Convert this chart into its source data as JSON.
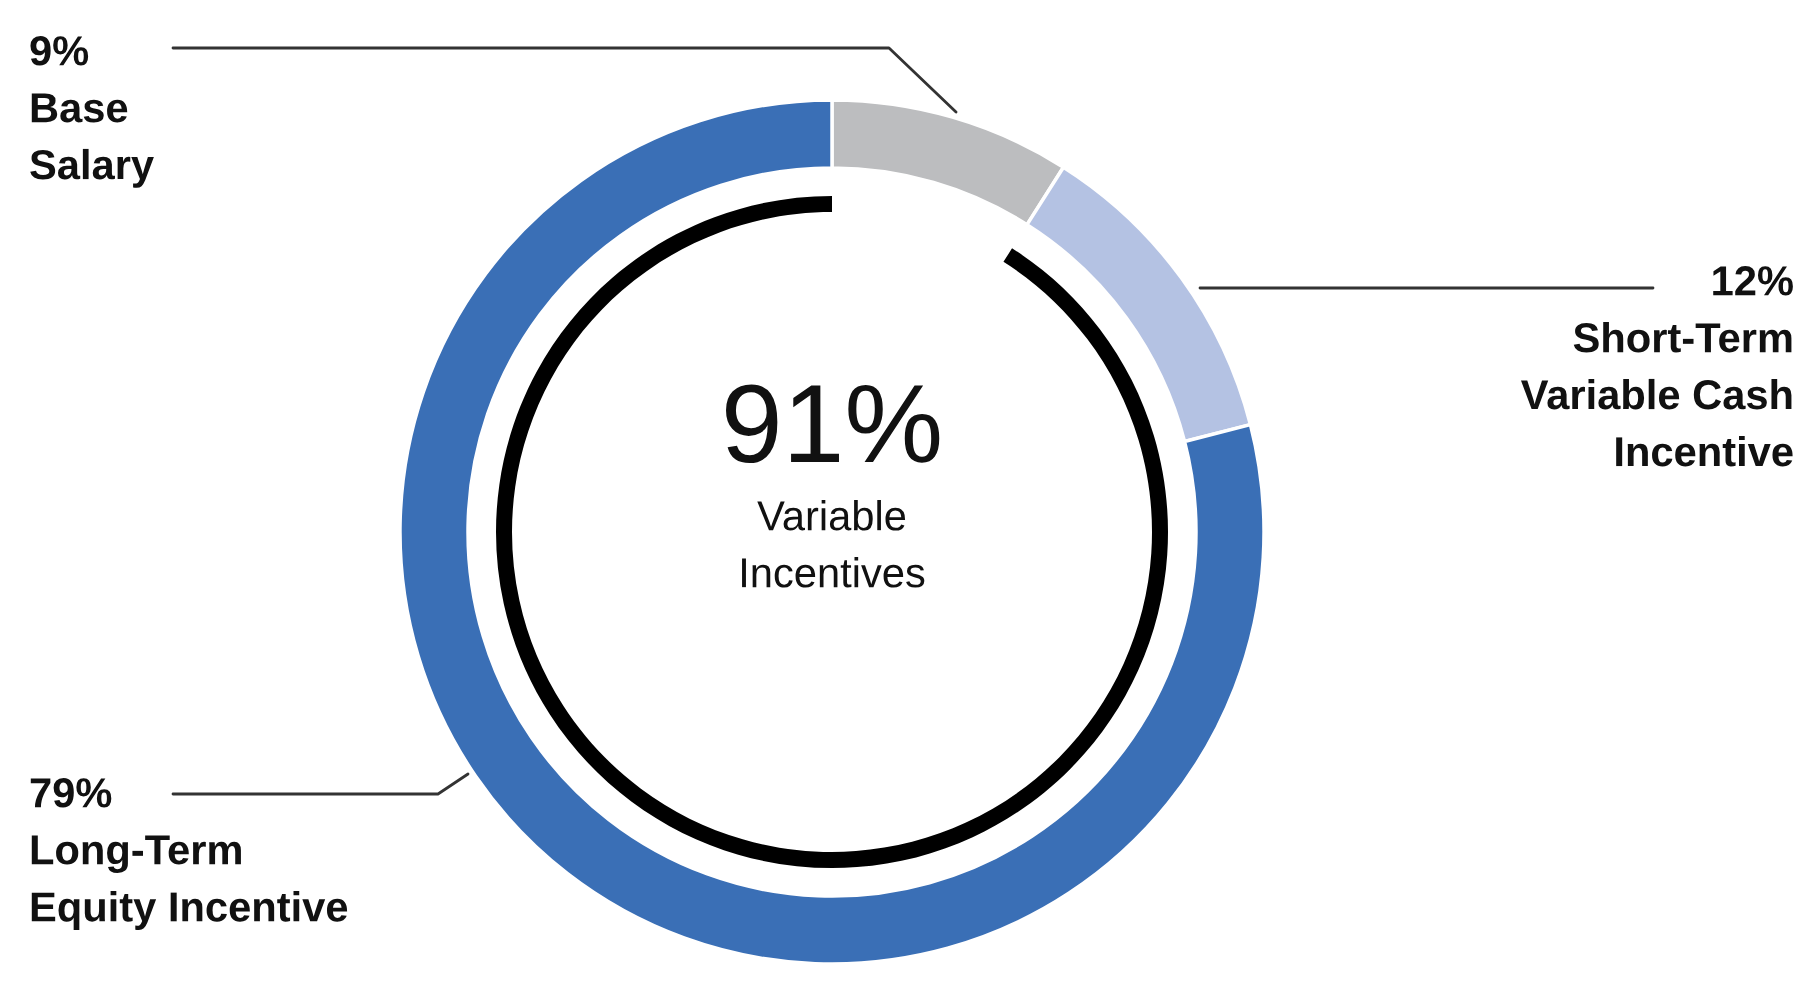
{
  "chart_data": {
    "type": "donut",
    "categories": [
      "Base\nSalary",
      "Short-Term\nVariable Cash\nIncentive",
      "Long-Term\nEquity Incentive"
    ],
    "values": [
      9,
      12,
      79
    ],
    "colors": [
      "#bcbdbf",
      "#b4c2e3",
      "#3a6fb6"
    ],
    "value_labels": [
      "9%",
      "12%",
      "79%"
    ],
    "annotations": [
      "91%",
      "Variable\nIncentives"
    ],
    "legend": false
  }
}
